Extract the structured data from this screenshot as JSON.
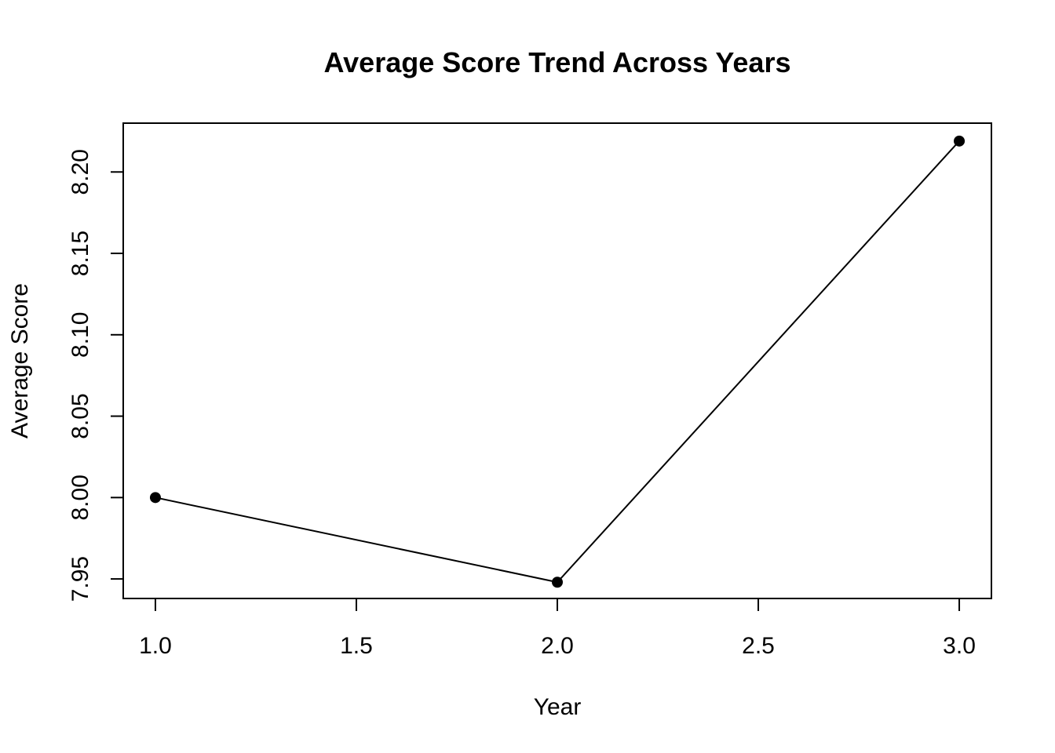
{
  "chart_data": {
    "type": "line",
    "title": "Average Score Trend Across Years",
    "xlabel": "Year",
    "ylabel": "Average Score",
    "x": [
      1,
      2,
      3
    ],
    "series": [
      {
        "values": [
          8.0,
          7.948,
          8.219
        ]
      }
    ],
    "xlim": [
      0.92,
      3.08
    ],
    "ylim": [
      7.938,
      8.23
    ],
    "x_ticks": [
      1.0,
      1.5,
      2.0,
      2.5,
      3.0
    ],
    "x_tick_labels": [
      "1.0",
      "1.5",
      "2.0",
      "2.5",
      "3.0"
    ],
    "y_ticks": [
      7.95,
      8.0,
      8.05,
      8.1,
      8.15,
      8.2
    ],
    "y_tick_labels": [
      "7.95",
      "8.00",
      "8.05",
      "8.10",
      "8.15",
      "8.20"
    ],
    "grid": false,
    "legend": "none",
    "colors": {
      "line": "#000000",
      "points": "#000000",
      "frame": "#000000",
      "background": "#ffffff"
    }
  }
}
